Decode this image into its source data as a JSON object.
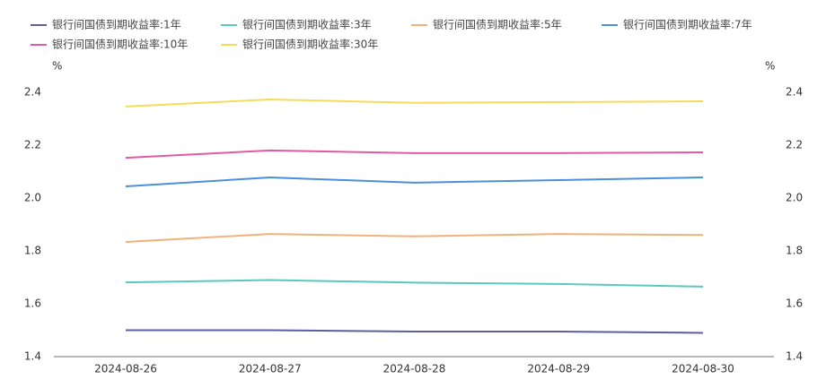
{
  "chart_data": {
    "type": "line",
    "x": [
      "2024-08-26",
      "2024-08-27",
      "2024-08-28",
      "2024-08-29",
      "2024-08-30"
    ],
    "y_label": "%",
    "y2_label": "%",
    "ylim": [
      1.4,
      2.4
    ],
    "yticks": [
      1.4,
      1.6,
      1.8,
      {
        "value": 2,
        "label": "2.0"
      },
      2.2,
      2.4
    ],
    "y2lim": [
      1.4,
      2.4
    ],
    "y2ticks": [
      1.4,
      1.6,
      1.8,
      {
        "value": 2,
        "label": "2.0"
      },
      2.2,
      2.4
    ],
    "grid": false,
    "legend": "top",
    "series": [
      {
        "name": "银行间国债到期收益率:1年",
        "color": "#5b5f9e",
        "values": [
          1.5,
          1.5,
          1.495,
          1.495,
          1.49
        ]
      },
      {
        "name": "银行间国债到期收益率:3年",
        "color": "#5bc8c0",
        "values": [
          1.681,
          1.69,
          1.68,
          1.675,
          1.665
        ]
      },
      {
        "name": "银行间国债到期收益率:5年",
        "color": "#f0b27a",
        "values": [
          1.834,
          1.864,
          1.855,
          1.864,
          1.86
        ]
      },
      {
        "name": "银行间国债到期收益率:7年",
        "color": "#4a90d9",
        "values": [
          2.044,
          2.078,
          2.058,
          2.068,
          2.078
        ]
      },
      {
        "name": "银行间国债到期收益率:10年",
        "color": "#e05aa6",
        "values": [
          2.152,
          2.18,
          2.17,
          2.17,
          2.173
        ]
      },
      {
        "name": "银行间国债到期收益率:30年",
        "color": "#f5dc5a",
        "values": [
          2.346,
          2.373,
          2.36,
          2.363,
          2.366
        ]
      }
    ]
  }
}
